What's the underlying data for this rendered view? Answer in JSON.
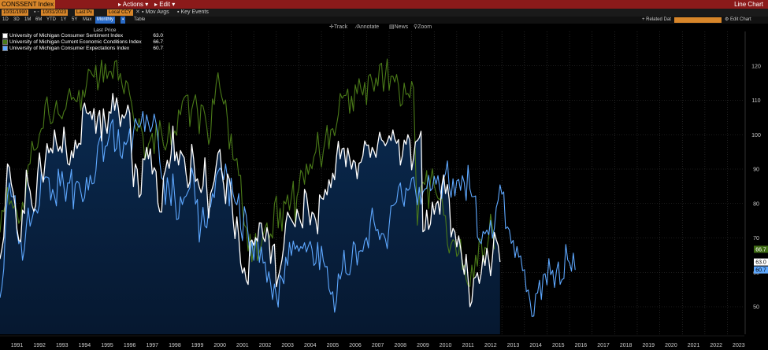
{
  "header": {
    "ticker": "CONSSENT Index",
    "actions_label": "Actions",
    "edit_label": "Edit",
    "chart_type_label": "Line Chart"
  },
  "toolbar": {
    "start_date": "10/31/1990",
    "end_date": "10/31/2023",
    "price_type": "Last Px",
    "currency": "Local CCY",
    "mov_avgs": "Mov Avgs",
    "key_events": "Key Events"
  },
  "periods": {
    "items": [
      "1D",
      "3D",
      "1M",
      "6M",
      "YTD",
      "1Y",
      "5Y",
      "Max",
      "Monthly",
      "Table"
    ],
    "selected": "Monthly",
    "related_label": "Related Dat",
    "edit_chart_label": "Edit Chart"
  },
  "tools": {
    "track": "Track",
    "annotate": "Annotate",
    "news": "News",
    "zoom": "Zoom"
  },
  "legend_header": "Last Price",
  "chart_data": {
    "type": "area",
    "x_start": "1990-10",
    "x_end": "2023-10",
    "ylim": [
      42,
      130
    ],
    "y_ticks": [
      50,
      60,
      70,
      80,
      90,
      100,
      110,
      120
    ],
    "x_ticks": [
      "1991",
      "1992",
      "1993",
      "1994",
      "1995",
      "1996",
      "1997",
      "1998",
      "1999",
      "2000",
      "2001",
      "2002",
      "2003",
      "2004",
      "2005",
      "2006",
      "2007",
      "2008",
      "2009",
      "2010",
      "2011",
      "2012",
      "2013",
      "2014",
      "2015",
      "2016",
      "2017",
      "2018",
      "2019",
      "2020",
      "2021",
      "2022",
      "2023"
    ],
    "series": [
      {
        "name": "University of Michigan Consumer Sentiment Index",
        "last": "63.0",
        "color": "#ffffff",
        "values": [
          63.9,
          66.8,
          70.2,
          82.0,
          91.5,
          90.5,
          85.7,
          83.3,
          79.6,
          72.6,
          69.3,
          68.9,
          78.1,
          77.1,
          89.7,
          85.7,
          83.6,
          79.4,
          77.7,
          79.5,
          88.6,
          94.7,
          89.2,
          86.2,
          92.1,
          97.4,
          94.7,
          96.1,
          94.7,
          101.4,
          97.6,
          95.2,
          96.6,
          94.8,
          102.2,
          96.9,
          91.6,
          91.2,
          95.3,
          93.3,
          98.4,
          96.0,
          97.5,
          97.2,
          107.6,
          109.2,
          106.4,
          106.0,
          106.8,
          104.4,
          107.6,
          100.4,
          105.2,
          107.0,
          98.2,
          107.5,
          103.2,
          100.4,
          106.7,
          106.2,
          112.0,
          107.1,
          110.7,
          107.6,
          102.4,
          105.8,
          104.8,
          106.0,
          108.6,
          106.3,
          94.7,
          84.9,
          91.5,
          89.9,
          81.8,
          82.7,
          93.0,
          92.8,
          96.3,
          93.0,
          95.9,
          88.6,
          90.4,
          89.3,
          80.0,
          77.6,
          77.5,
          87.7,
          89.7,
          92.6,
          90.2,
          94.4,
          102.5,
          92.4,
          95.0,
          91.2,
          95.4,
          94.2,
          93.3,
          88.5,
          84.6,
          86.3,
          97.2,
          93.0,
          86.4,
          87.2,
          84.8,
          83.2,
          85.1,
          93.3,
          84.4,
          75.8,
          82.9,
          84.5,
          86.6,
          90.9,
          94.7,
          95.7,
          89.1,
          85.3,
          80.0,
          88.6,
          87.1,
          83.4,
          75.4,
          69.8,
          76.1,
          70.4,
          62.6,
          59.8,
          61.3,
          57.7,
          56.5,
          68.8,
          69.4,
          67.8,
          70.1,
          69.0,
          74.4,
          74.3,
          70.1,
          68.9,
          73.0,
          70.5,
          62.6,
          67.5,
          68.2,
          55.8,
          58.5,
          60.9,
          63.7,
          67.7,
          74.2,
          77.5,
          76.2,
          75.3,
          74.3,
          73.2,
          78.3,
          76.4,
          74.5,
          72.9,
          84.1,
          82.7,
          78.3,
          73.8,
          77.5,
          76.9,
          75.1,
          71.2,
          82.5,
          81.6,
          81.2,
          84.1,
          82.5,
          86.9,
          84.6,
          88.8,
          86.9,
          93.6,
          98.1,
          93.0,
          95.9,
          96.1,
          90.7,
          96.1,
          93.1,
          90.0,
          92.6,
          91.9,
          87.2,
          91.7,
          92.0,
          93.8,
          98.2,
          96.9,
          97.0,
          93.4,
          96.3,
          95.1,
          93.4,
          97.5,
          100.7,
          98.5,
          98.0,
          96.8,
          97.9,
          99.7,
          98.3,
          101.4,
          98.8,
          97.5,
          98.6,
          91.2,
          93.8,
          98.4,
          97.2,
          100.0,
          98.4,
          89.8,
          93.2,
          97.9,
          98.3,
          99.1,
          101.0,
          71.8,
          72.3,
          78.1,
          72.5,
          74.1,
          80.4,
          76.9,
          79.8,
          80.7,
          76.9,
          84.9,
          88.3,
          82.9,
          85.5,
          81.2,
          70.3,
          72.8,
          71.7,
          67.4,
          70.6,
          67.2,
          62.8,
          59.4,
          65.2,
          58.4,
          50.0,
          51.5,
          58.2,
          58.6,
          59.9,
          56.8,
          59.7,
          64.9,
          62.0,
          67.0,
          63.7,
          59.0,
          64.4,
          71.6,
          69.5,
          67.9,
          63.0
        ]
      },
      {
        "name": "University of Michigan Current Economic Conditions Index",
        "last": "66.7",
        "color": "#4a7a18",
        "values": [
          71.6,
          78.0,
          77.7,
          80.1,
          84.6,
          79.7,
          80.8,
          78.6,
          79.6,
          77.6,
          74.2,
          75.6,
          80.4,
          78.3,
          85.8,
          91.1,
          91.6,
          98.1,
          95.5,
          95.6,
          96.4,
          100.1,
          101.7,
          101.9,
          108.8,
          111.0,
          105.9,
          103.2,
          103.6,
          106.8,
          109.9,
          106.1,
          105.4,
          104.6,
          106.7,
          107.5,
          111.2,
          113.4,
          110.2,
          110.9,
          109.9,
          109.6,
          112.9,
          107.1,
          113.0,
          110.9,
          114.5,
          119.0,
          118.6,
          117.5,
          116.7,
          120.2,
          113.0,
          116.1,
          121.7,
          115.3,
          120.6,
          116.3,
          118.3,
          118.4,
          116.3,
          121.2,
          121.6,
          115.8,
          117.8,
          114.4,
          111.9,
          115.7,
          114.9,
          111.6,
          109.2,
          105.1,
          101.9,
          101.0,
          104.7,
          102.2,
          99.8,
          92.7,
          94.2,
          97.2,
          98.6,
          100.4,
          94.5,
          102.9,
          98.3,
          104.1,
          100.5,
          96.9,
          95.5,
          97.8,
          103.5,
          97.1,
          99.6,
          101.1,
          99.8,
          107.2,
          105.8,
          109.6,
          110.8,
          111.4,
          111.5,
          102.4,
          107.3,
          109.7,
          111.6,
          107.3,
          100.3,
          108.7,
          108.3,
          105.9,
          102.3,
          97.2,
          99.4,
          110.4,
          108.8,
          114.8,
          118.0,
          113.6,
          110.9,
          108.9,
          110.1,
          104.3,
          95.8,
          100.2,
          92.9,
          92.5,
          93.1,
          88.1,
          88.2,
          78.0,
          73.8,
          72.9,
          66.2,
          71.1,
          63.1,
          67.3,
          71.3,
          63.4,
          65.9,
          67.9,
          70.9,
          72.8,
          74.4,
          69.6,
          71.2,
          69.9,
          79.9,
          82.2,
          72.9,
          78.6,
          72.0,
          80.7,
          79.9,
          82.5,
          78.1,
          81.8,
          86.5,
          74.5,
          82.0,
          84.3,
          89.7,
          88.7,
          85.6,
          91.5,
          88.5,
          91.5,
          90.1,
          93.6,
          95.1,
          100.7,
          94.4,
          90.6,
          95.2,
          98.4,
          102.7,
          95.9,
          101.4,
          101.8,
          99.7,
          102.7,
          105.8,
          112.0,
          110.6,
          111.4,
          111.4,
          113.3,
          106.2,
          111.2,
          106.9,
          114.5,
          111.9,
          116.3,
          113.3,
          111.5,
          115.2,
          108.7,
          117.0,
          117.6,
          115.2,
          112.6,
          116.5,
          114.2,
          120.3,
          120.8,
          112.6,
          117.1,
          122.0,
          112.9,
          117.0,
          117.0,
          115.3,
          117.5,
          114.4,
          108.3,
          108.9,
          115.0,
          111.7,
          112.0,
          110.7,
          115.5,
          113.6,
          92.7,
          73.7,
          81.3,
          85.0,
          86.2,
          85.5,
          89.6,
          78.5,
          86.5,
          90.1,
          85.2,
          83.0,
          81.5,
          81.1,
          82.4,
          76.7,
          76.4,
          68.2,
          65.6,
          68.2,
          69.5,
          69.0,
          64.6,
          65.5,
          69.6,
          60.8,
          62.1,
          58.0,
          56.2,
          55.9,
          62.1,
          57.9,
          65.0,
          61.8,
          69.8,
          69.3,
          63.1,
          67.3,
          66.6,
          70.4,
          76.9,
          73.0,
          66.7
        ]
      },
      {
        "name": "University of Michigan Consumer Expectations Index",
        "last": "60.7",
        "color": "#5ea8ff",
        "values": [
          52.6,
          55.8,
          61.1,
          75.0,
          82.2,
          86.0,
          82.1,
          81.9,
          82.3,
          71.6,
          68.3,
          69.7,
          63.5,
          66.8,
          73.4,
          78.7,
          73.4,
          75.5,
          77.9,
          78.3,
          77.2,
          79.7,
          89.1,
          86.5,
          87.7,
          87.7,
          87.4,
          81.0,
          84.1,
          82.1,
          79.3,
          90.0,
          85.1,
          89.3,
          84.9,
          80.6,
          86.0,
          85.9,
          89.9,
          78.4,
          85.6,
          86.5,
          86.0,
          83.4,
          80.5,
          81.7,
          87.6,
          83.9,
          88.2,
          85.7,
          85.9,
          89.4,
          96.7,
          98.8,
          100.1,
          92.2,
          96.6,
          96.8,
          99.4,
          103.2,
          104.4,
          95.1,
          96.1,
          101.5,
          94.2,
          93.1,
          97.9,
          97.1,
          98.4,
          101.7,
          94.5,
          100.7,
          104.7,
          103.1,
          102.1,
          103.4,
          106.8,
          100.9,
          105.8,
          103.3,
          100.8,
          102.4,
          106.0,
          103.3,
          99.7,
          92.1,
          87.5,
          86.7,
          79.7,
          87.5,
          84.1,
          79.4,
          88.6,
          81.9,
          75.3,
          75.6,
          82.0,
          79.7,
          81.7,
          82.2,
          83.4,
          84.6,
          90.3,
          87.9,
          79.8,
          81.2,
          68.8,
          74.3,
          78.9,
          73.5,
          72.9,
          78.4,
          79.1,
          82.9,
          81.7,
          88.1,
          89.3,
          90.3,
          89.5,
          86.9,
          91.5,
          87.2,
          79.3,
          87.4,
          82.7,
          80.5,
          79.6,
          82.9,
          72.6,
          69.2,
          79.1,
          76.6,
          71.0,
          64.8,
          69.1,
          63.5,
          69.4,
          69.8,
          62.9,
          67.4,
          62.7,
          63.0,
          57.1,
          60.2,
          56.7,
          52.1,
          56.6,
          53.2,
          49.9,
          59.2,
          58.2,
          56.7,
          64.4,
          62.0,
          68.7,
          64.9,
          69.1,
          66.7,
          67.8,
          66.1,
          67.5,
          66.9,
          68.6,
          65.9,
          67.6,
          69.0,
          66.7,
          62.0,
          62.7,
          68.7,
          60.8,
          67.6,
          63.3,
          61.6,
          61.7,
          55.2,
          53.6,
          54.4,
          48.4,
          51.8,
          59.6,
          58.0,
          60.5,
          66.4,
          59.9,
          59.3,
          59.3,
          62.9,
          68.9,
          68.0,
          62.1,
          66.1,
          66.3,
          66.1,
          69.1,
          70.1,
          67.1,
          74.5,
          78.7,
          74.6,
          72.1,
          72.5,
          69.5,
          71.3,
          71.2,
          69.7,
          66.9,
          73.6,
          79.3,
          79.4,
          79.8,
          80.5,
          84.7,
          86.0,
          81.3,
          79.2,
          84.5,
          83.8,
          84.4,
          87.3,
          87.7,
          83.8,
          79.6,
          84.7,
          79.8,
          83.3,
          84.2,
          84.4,
          88.2,
          83.7,
          84.4,
          87.9,
          85.6,
          88.1,
          84.2,
          81.5,
          87.2,
          88.7,
          92.4,
          84.9,
          81.8,
          87.2,
          82.2,
          86.6,
          87.0,
          83.8,
          88.1,
          86.1,
          80.9,
          91.1,
          84.2,
          82.0,
          82.0,
          82.2,
          70.3,
          69.2,
          68.3,
          71.9,
          71.2,
          72.3,
          70.9,
          75.1,
          69.9,
          72.8,
          78.8,
          80.9,
          85.4,
          82.7,
          83.4,
          72.7,
          73.2,
          72.3,
          68.4,
          69.3,
          64.3,
          67.5,
          64.4,
          64.8,
          60.5,
          60.8,
          54.4,
          54.9,
          51.5,
          47.2,
          47.3,
          53.7,
          54.0,
          57.7,
          52.1,
          59.3,
          59.6,
          56.3,
          64.0,
          59.3,
          60.6,
          55.6,
          60.3,
          63.0,
          56.5,
          57.9,
          58.2,
          68.1,
          63.6,
          62.8,
          60.3,
          65.6,
          60.7
        ]
      }
    ]
  }
}
